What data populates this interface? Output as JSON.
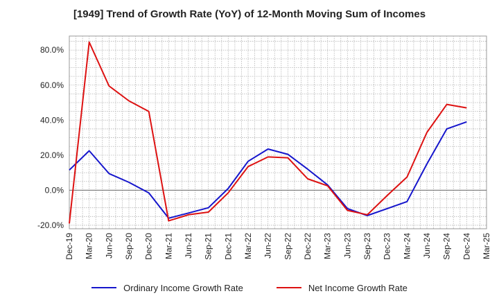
{
  "chart_data": {
    "type": "line",
    "title": "[1949]  Trend of Growth Rate (YoY) of 12-Month Moving Sum of Incomes",
    "xlabel": "",
    "ylabel": "",
    "ylim": [
      -22,
      88
    ],
    "y_ticks": [
      -20,
      0,
      20,
      40,
      60,
      80
    ],
    "y_tick_labels": [
      "-20.0%",
      "0.0%",
      "20.0%",
      "40.0%",
      "60.0%",
      "80.0%"
    ],
    "categories": [
      "Dec-19",
      "Mar-20",
      "Jun-20",
      "Sep-20",
      "Dec-20",
      "Mar-21",
      "Jun-21",
      "Sep-21",
      "Dec-21",
      "Mar-22",
      "Jun-22",
      "Sep-22",
      "Dec-22",
      "Mar-23",
      "Jun-23",
      "Sep-23",
      "Dec-23",
      "Mar-24",
      "Jun-24",
      "Sep-24",
      "Dec-24",
      "Mar-25"
    ],
    "grid": true,
    "legend_position": "bottom",
    "series": [
      {
        "name": "Ordinary Income Growth Rate",
        "color": "#1515cc",
        "values": [
          11.5,
          22.5,
          9.5,
          4.5,
          -1.5,
          -16.0,
          -13.0,
          -10.0,
          1.0,
          16.5,
          23.5,
          20.5,
          12.0,
          3.0,
          -10.5,
          -14.5,
          -10.5,
          -6.5,
          15.0,
          35.0,
          39.0,
          null
        ]
      },
      {
        "name": "Net Income Growth Rate",
        "color": "#dd1111",
        "values": [
          -19.0,
          84.5,
          59.5,
          51.0,
          45.0,
          -17.5,
          -14.0,
          -12.5,
          -1.5,
          13.5,
          19.0,
          18.5,
          6.5,
          2.5,
          -11.5,
          -14.0,
          -3.0,
          7.5,
          33.0,
          49.0,
          47.0,
          null
        ]
      }
    ]
  }
}
